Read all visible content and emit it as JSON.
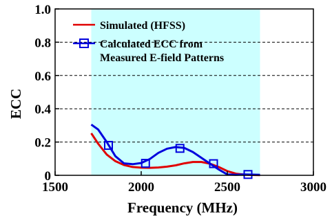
{
  "chart_data": {
    "type": "line",
    "xlabel": "Frequency (MHz)",
    "ylabel": "ECC",
    "xlim": [
      1500,
      3000
    ],
    "ylim": [
      0,
      1.0
    ],
    "x_ticks": [
      1500,
      2000,
      2500,
      3000
    ],
    "x_tick_labels": [
      "1500",
      "2000",
      "2500",
      "3000"
    ],
    "y_ticks": [
      0,
      0.2,
      0.4,
      0.6,
      0.8,
      1.0
    ],
    "y_tick_labels": [
      "0",
      "0.2",
      "0.4",
      "0.6",
      "0.8",
      "1.0"
    ],
    "grid": "horizontal dashed",
    "legend_position": "top-left",
    "highlight_band": {
      "from": 1710,
      "to": 2690,
      "color": "#ccffff"
    },
    "series": [
      {
        "name": "Simulated (HFSS)",
        "color": "#e00000",
        "marker": "none",
        "x": [
          1710,
          1750,
          1800,
          1850,
          1900,
          1950,
          2000,
          2050,
          2100,
          2150,
          2200,
          2250,
          2300,
          2350,
          2400,
          2450,
          2500,
          2550,
          2600,
          2650,
          2690
        ],
        "y": [
          0.253,
          0.19,
          0.125,
          0.085,
          0.062,
          0.05,
          0.046,
          0.045,
          0.047,
          0.052,
          0.06,
          0.072,
          0.08,
          0.08,
          0.07,
          0.05,
          0.025,
          0.01,
          0.004,
          0.002,
          0.001
        ]
      },
      {
        "name": "Calculated ECC from Measured E-field Patterns",
        "color": "#0000dd",
        "marker": "square",
        "x": [
          1710,
          1750,
          1800,
          1850,
          1900,
          1950,
          2000,
          2050,
          2100,
          2150,
          2200,
          2250,
          2300,
          2350,
          2400,
          2450,
          2500,
          2550,
          2600,
          2650,
          2690
        ],
        "y": [
          0.305,
          0.275,
          0.2,
          0.115,
          0.072,
          0.067,
          0.074,
          0.098,
          0.135,
          0.16,
          0.17,
          0.165,
          0.14,
          0.105,
          0.07,
          0.035,
          0.005,
          0.003,
          0.005,
          0.004,
          0.003
        ],
        "marker_x": [
          1810,
          2025,
          2225,
          2420,
          2620
        ],
        "marker_y": [
          0.18,
          0.072,
          0.162,
          0.07,
          0.005
        ]
      }
    ]
  }
}
